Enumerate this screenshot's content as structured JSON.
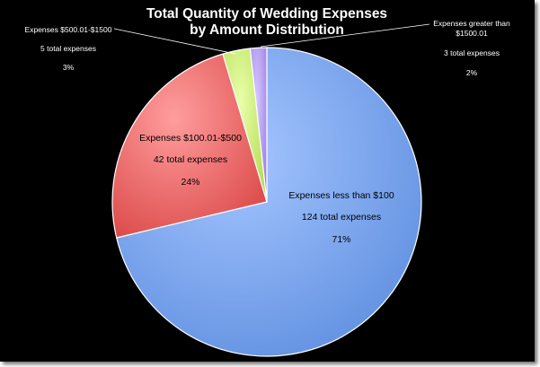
{
  "chart_data": {
    "type": "pie",
    "title_lines": [
      "Total Quantity of Wedding Expenses",
      "by Amount Distribution"
    ],
    "slices": [
      {
        "label": "Expenses less than $100",
        "count_text": "124 total expenses",
        "percent_text": "71%",
        "value": 124,
        "color": "#7faaf0"
      },
      {
        "label": "Expenses $100.01-$500",
        "count_text": "42 total expenses",
        "percent_text": "24%",
        "value": 42,
        "color": "#ef6f6f"
      },
      {
        "label": "Expenses $500.01-$1500",
        "count_text": "5 total expenses",
        "percent_text": "3%",
        "value": 5,
        "color": "#d0f07a"
      },
      {
        "label_lines": [
          "Expenses greater than",
          "$1500.01"
        ],
        "count_text": "3 total expenses",
        "percent_text": "2%",
        "value": 3,
        "color": "#b79ef0"
      }
    ],
    "start_angle_deg": 0,
    "direction": "clockwise",
    "legend": "none"
  }
}
